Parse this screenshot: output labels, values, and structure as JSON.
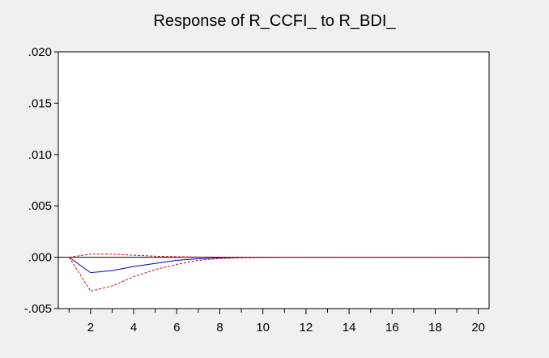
{
  "chart_data": {
    "type": "line",
    "title": "Response of R_CCFI_ to R_BDI_",
    "xlabel": "",
    "ylabel": "",
    "xlim": [
      0.5,
      20.5
    ],
    "ylim": [
      -0.005,
      0.02
    ],
    "x_ticks": [
      2,
      4,
      6,
      8,
      10,
      12,
      14,
      16,
      18,
      20
    ],
    "x_tick_labels": [
      "2",
      "4",
      "6",
      "8",
      "10",
      "12",
      "14",
      "16",
      "18",
      "20"
    ],
    "y_ticks": [
      -0.005,
      0.0,
      0.005,
      0.01,
      0.015,
      0.02
    ],
    "y_tick_labels": [
      "-.005",
      ".000",
      ".005",
      ".010",
      ".015",
      ".020"
    ],
    "zero_line": true,
    "grid": false,
    "legend": "none",
    "x": [
      1,
      2,
      3,
      4,
      5,
      6,
      7,
      8,
      9,
      10,
      11,
      12,
      13,
      14,
      15,
      16,
      17,
      18,
      19,
      20
    ],
    "series": [
      {
        "role": "response",
        "color": "#0000c0",
        "style": "solid",
        "values": [
          0.0,
          -0.0015,
          -0.0013,
          -0.0009,
          -0.0006,
          -0.0003,
          -0.00015,
          -6e-05,
          -2e-05,
          -1e-05,
          0,
          0,
          0,
          0,
          0,
          0,
          0,
          0,
          0,
          0
        ]
      },
      {
        "role": "upper-band",
        "color": "#e00000",
        "style": "dashed",
        "values": [
          0.0,
          0.0003,
          0.0003,
          0.0002,
          0.0001,
          5e-05,
          2e-05,
          1e-05,
          0,
          0,
          0,
          0,
          0,
          0,
          0,
          0,
          0,
          0,
          0,
          0
        ]
      },
      {
        "role": "lower-band",
        "color": "#e00000",
        "style": "dashed",
        "values": [
          0.0,
          -0.0033,
          -0.0028,
          -0.0019,
          -0.0012,
          -0.0007,
          -0.0003,
          -0.00013,
          -5e-05,
          -2e-05,
          0,
          0,
          0,
          0,
          0,
          0,
          0,
          0,
          0,
          0
        ]
      }
    ]
  }
}
